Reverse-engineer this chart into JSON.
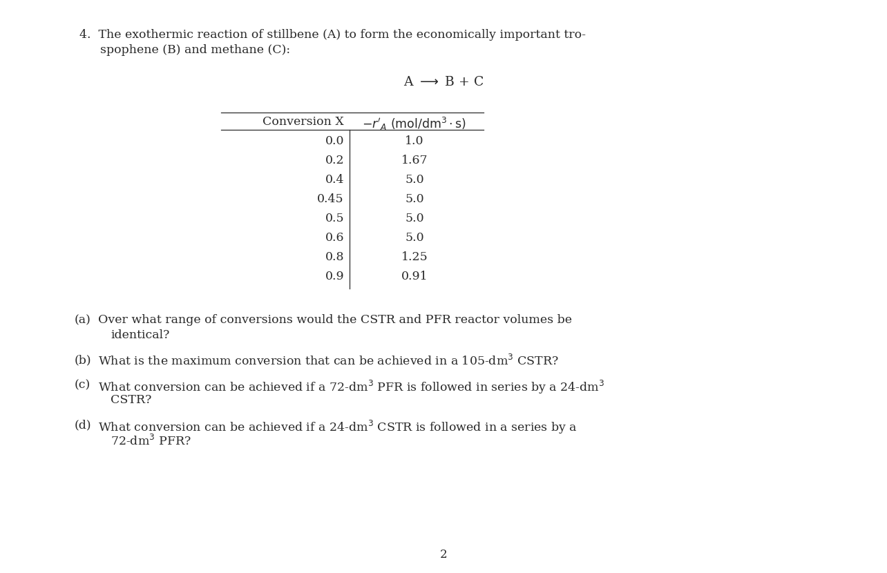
{
  "background_color": "#ffffff",
  "font_color": "#2a2a2a",
  "font_size_main": 12.5,
  "font_size_table": 12.5,
  "title_line1": "4.  The exothermic reaction of stillbene (A) to form the economically important tro-",
  "title_line2": "spophene (B) and methane (C):",
  "table_data": [
    [
      "0.0",
      "1.0"
    ],
    [
      "0.2",
      "1.67"
    ],
    [
      "0.4",
      "5.0"
    ],
    [
      "0.45",
      "5.0"
    ],
    [
      "0.5",
      "5.0"
    ],
    [
      "0.6",
      "5.0"
    ],
    [
      "0.8",
      "1.25"
    ],
    [
      "0.9",
      "0.91"
    ]
  ],
  "page_number": "2",
  "q_a_line1": "Over what range of conversions would the CSTR and PFR reactor volumes be",
  "q_a_line2": "identical?",
  "q_b_line1": "What is the maximum conversion that can be achieved in a 105-dm",
  "q_c_line1": "What conversion can be achieved if a 72-dm",
  "q_c_line2": "CSTR?",
  "q_d_line1": "What conversion can be achieved if a 24-dm",
  "q_d_line2": "72-dm"
}
